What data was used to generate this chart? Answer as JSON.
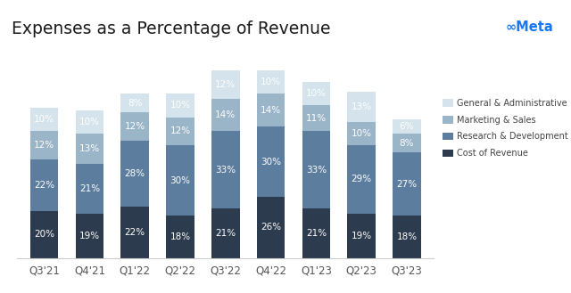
{
  "title": "Expenses as a Percentage of Revenue",
  "categories": [
    "Q3'21",
    "Q4'21",
    "Q1'22",
    "Q2'22",
    "Q3'22",
    "Q4'22",
    "Q1'23",
    "Q2'23",
    "Q3'23"
  ],
  "series": {
    "Cost of Revenue": [
      20,
      19,
      22,
      18,
      21,
      26,
      21,
      19,
      18
    ],
    "Research & Development": [
      22,
      21,
      28,
      30,
      33,
      30,
      33,
      29,
      27
    ],
    "Marketing & Sales": [
      12,
      13,
      12,
      12,
      14,
      14,
      11,
      10,
      8
    ],
    "General & Administrative": [
      10,
      10,
      8,
      10,
      12,
      10,
      10,
      13,
      6
    ]
  },
  "colors": {
    "Cost of Revenue": "#2d3b4e",
    "Research & Development": "#5c7d9e",
    "Marketing & Sales": "#9bb5c8",
    "General & Administrative": "#d4e3ec"
  },
  "legend_order": [
    "General & Administrative",
    "Marketing & Sales",
    "Research & Development",
    "Cost of Revenue"
  ],
  "background_color": "#ffffff",
  "bar_width": 0.62,
  "ylim": [
    0,
    85
  ],
  "label_fontsize": 7.5,
  "title_fontsize": 13.5,
  "tick_fontsize": 8.5
}
